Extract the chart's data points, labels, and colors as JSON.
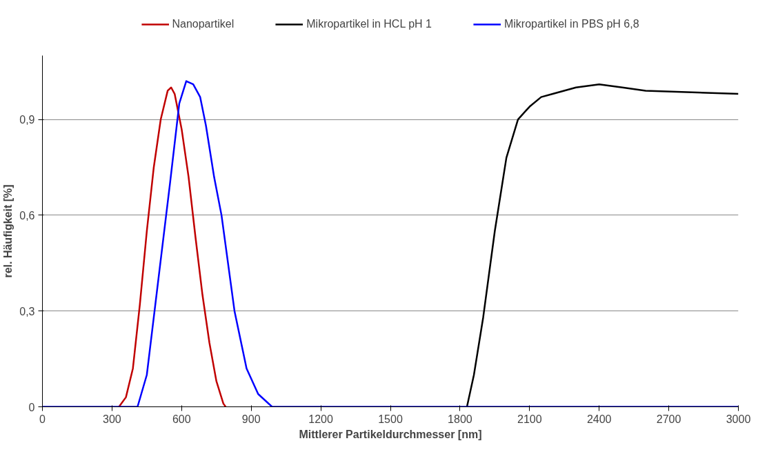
{
  "chart_data": {
    "type": "line",
    "xlabel": "Mittlerer Partikeldurchmesser [nm]",
    "ylabel": "rel. Häufigkeit [%]",
    "xlim": [
      0,
      3000
    ],
    "xticks": [
      0,
      300,
      600,
      900,
      1200,
      1500,
      1800,
      2100,
      2400,
      2700,
      3000
    ],
    "ylim": [
      0,
      1.1
    ],
    "yticks": [
      0,
      {
        "value": 0.3,
        "label": "0,3"
      },
      {
        "value": 0.6,
        "label": "0,6"
      },
      {
        "value": 0.9,
        "label": "0,9"
      }
    ],
    "grid": "y",
    "legend": "top",
    "marker": "none",
    "line_style": "solid",
    "series": [
      {
        "name": "Nanopartikel",
        "color": "#c00000",
        "x": [
          330,
          360,
          390,
          420,
          450,
          480,
          510,
          540,
          555,
          570,
          600,
          630,
          660,
          690,
          720,
          750,
          780,
          790
        ],
        "values": [
          0,
          0.03,
          0.12,
          0.32,
          0.55,
          0.75,
          0.9,
          0.99,
          1.0,
          0.98,
          0.87,
          0.72,
          0.53,
          0.35,
          0.2,
          0.08,
          0.01,
          0
        ]
      },
      {
        "name": "Mikropartikel in HCL pH 1",
        "color": "#000000",
        "x": [
          1830,
          1860,
          1900,
          1950,
          2000,
          2050,
          2100,
          2150,
          2200,
          2300,
          2400,
          2500,
          2600,
          3000
        ],
        "values": [
          0,
          0.1,
          0.28,
          0.55,
          0.78,
          0.9,
          0.94,
          0.97,
          0.98,
          1.0,
          1.01,
          1.0,
          0.99,
          0.98
        ]
      },
      {
        "name": "Mikropartikel in PBS pH 6,8",
        "color": "#0000ff",
        "x": [
          0,
          410,
          450,
          500,
          550,
          590,
          620,
          650,
          680,
          705,
          740,
          772,
          828,
          880,
          930,
          990,
          3000
        ],
        "values": [
          0,
          0,
          0.1,
          0.4,
          0.7,
          0.95,
          1.02,
          1.01,
          0.97,
          0.88,
          0.72,
          0.6,
          0.3,
          0.12,
          0.04,
          0,
          0
        ]
      }
    ]
  }
}
